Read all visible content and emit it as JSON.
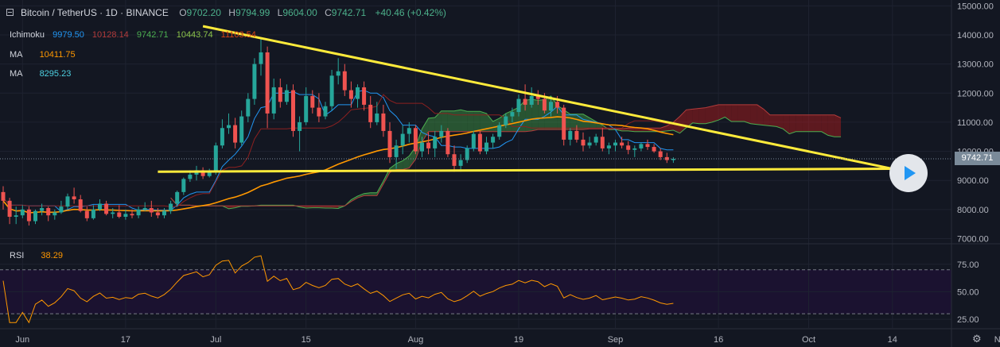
{
  "header": {
    "symbol": "Bitcoin / TetherUS · 1D · BINANCE",
    "o_label": "O",
    "o": "9702.20",
    "h_label": "H",
    "h": "9794.99",
    "l_label": "L",
    "l": "9604.00",
    "c_label": "C",
    "c": "9742.71",
    "change": "+40.46 (+0.42%)"
  },
  "indicators": [
    {
      "name": "Ichimoku",
      "values": [
        "9979.50",
        "10128.14",
        "9742.71",
        "10443.74",
        "11103.54"
      ],
      "colors": [
        "#2196f3",
        "#b23b3b",
        "#4caf50",
        "#8bc34a",
        "#d84315"
      ]
    },
    {
      "name": "MA",
      "values": [
        "10411.75"
      ],
      "colors": [
        "#ff9800"
      ]
    },
    {
      "name": "MA",
      "values": [
        "8295.23"
      ],
      "colors": [
        "#4dd0e1"
      ]
    }
  ],
  "rsi": {
    "name": "RSI",
    "value": "38.29",
    "color": "#ff9800",
    "levels": [
      "75.00",
      "50.00",
      "25.00"
    ]
  },
  "price_tag": "9742.71",
  "colors": {
    "up": "#26a69a",
    "down": "#ef5350",
    "trend": "#ffeb3b",
    "bg": "#131722",
    "grid": "#1e2230"
  },
  "chart_data": {
    "type": "candlestick",
    "y_axis": {
      "ticks": [
        15000,
        14000,
        13000,
        12000,
        11000,
        10000,
        9000,
        8000,
        7000
      ],
      "tick_labels": [
        "15000.00",
        "14000.00",
        "13000.00",
        "12000.00",
        "11000.00",
        "10000.00",
        "9000.00",
        "8000.00",
        "7000.00"
      ],
      "ylim": [
        6850,
        15200
      ]
    },
    "x_axis": {
      "labels": [
        "Jun",
        "17",
        "Jul",
        "15",
        "Aug",
        "19",
        "Sep",
        "16",
        "Oct",
        "14",
        "Nov"
      ],
      "day_index": [
        3,
        19,
        33,
        47,
        64,
        80,
        95,
        111,
        125,
        138,
        155
      ]
    },
    "ohlc": [
      [
        8600,
        8800,
        8000,
        8300
      ],
      [
        8300,
        8400,
        7500,
        7750
      ],
      [
        7750,
        8100,
        7500,
        7800
      ],
      [
        7800,
        8150,
        7700,
        8000
      ],
      [
        8000,
        8100,
        7450,
        7600
      ],
      [
        7600,
        8000,
        7500,
        7950
      ],
      [
        7950,
        8200,
        7800,
        8050
      ],
      [
        8050,
        8100,
        7600,
        7800
      ],
      [
        7800,
        8000,
        7650,
        7900
      ],
      [
        7900,
        8300,
        7850,
        8100
      ],
      [
        8100,
        8550,
        8000,
        8450
      ],
      [
        8450,
        8750,
        8200,
        8350
      ],
      [
        8350,
        8500,
        7900,
        7950
      ],
      [
        7950,
        8100,
        7600,
        7700
      ],
      [
        7700,
        8150,
        7650,
        8000
      ],
      [
        8000,
        8350,
        7950,
        8200
      ],
      [
        8200,
        8300,
        7800,
        7850
      ],
      [
        7850,
        8050,
        7700,
        7900
      ],
      [
        7900,
        8150,
        7700,
        7750
      ],
      [
        7750,
        8000,
        7650,
        7850
      ],
      [
        7850,
        8000,
        7700,
        7800
      ],
      [
        7800,
        8100,
        7700,
        8000
      ],
      [
        8000,
        8250,
        7950,
        8050
      ],
      [
        8050,
        8300,
        7750,
        7900
      ],
      [
        7900,
        8050,
        7700,
        7800
      ],
      [
        7800,
        8050,
        7700,
        7950
      ],
      [
        7950,
        8300,
        7850,
        8200
      ],
      [
        8200,
        8650,
        8100,
        8600
      ],
      [
        8600,
        9100,
        8500,
        9050
      ],
      [
        9050,
        9350,
        8950,
        9200
      ],
      [
        9200,
        9500,
        9000,
        9350
      ],
      [
        9350,
        9450,
        9050,
        9150
      ],
      [
        9150,
        9400,
        9100,
        9300
      ],
      [
        9300,
        10300,
        9200,
        10200
      ],
      [
        10200,
        11100,
        10100,
        10800
      ],
      [
        10800,
        11300,
        10600,
        10900
      ],
      [
        10900,
        11150,
        10100,
        10300
      ],
      [
        10300,
        11400,
        10200,
        11200
      ],
      [
        11200,
        12000,
        11000,
        11800
      ],
      [
        11800,
        13200,
        11600,
        13000
      ],
      [
        13000,
        13900,
        12600,
        13400
      ],
      [
        13400,
        13600,
        10800,
        11300
      ],
      [
        11300,
        12500,
        11100,
        12200
      ],
      [
        12200,
        12500,
        11500,
        11700
      ],
      [
        11700,
        12300,
        11600,
        12100
      ],
      [
        12100,
        12300,
        10500,
        10700
      ],
      [
        10700,
        11200,
        10000,
        11000
      ],
      [
        11000,
        12200,
        10900,
        11900
      ],
      [
        11900,
        12100,
        11300,
        11500
      ],
      [
        11500,
        12000,
        11000,
        11200
      ],
      [
        11200,
        11700,
        11100,
        11550
      ],
      [
        11550,
        12800,
        11400,
        12600
      ],
      [
        12600,
        13200,
        12300,
        12750
      ],
      [
        12750,
        13000,
        11900,
        12100
      ],
      [
        12100,
        12400,
        11500,
        11800
      ],
      [
        11800,
        12300,
        11500,
        12200
      ],
      [
        12200,
        12400,
        11400,
        11600
      ],
      [
        11600,
        11900,
        10800,
        11000
      ],
      [
        11000,
        11700,
        10900,
        11300
      ],
      [
        11300,
        11600,
        10500,
        10700
      ],
      [
        10700,
        11000,
        9600,
        9800
      ],
      [
        9800,
        10400,
        9400,
        10200
      ],
      [
        10200,
        10900,
        9900,
        10600
      ],
      [
        10600,
        11000,
        10300,
        10800
      ],
      [
        10800,
        10900,
        9900,
        10000
      ],
      [
        10000,
        10500,
        9800,
        10300
      ],
      [
        10300,
        10650,
        9900,
        10100
      ],
      [
        10100,
        10700,
        9800,
        10500
      ],
      [
        10500,
        10900,
        10300,
        10700
      ],
      [
        10700,
        10800,
        9800,
        9900
      ],
      [
        9900,
        10200,
        9300,
        9500
      ],
      [
        9500,
        9900,
        9300,
        9700
      ],
      [
        9700,
        10200,
        9600,
        10100
      ],
      [
        10100,
        10700,
        10000,
        10600
      ],
      [
        10600,
        10700,
        9900,
        10000
      ],
      [
        10000,
        10500,
        9900,
        10300
      ],
      [
        10300,
        10600,
        10100,
        10500
      ],
      [
        10500,
        11000,
        10400,
        10900
      ],
      [
        10900,
        11300,
        10800,
        11200
      ],
      [
        11200,
        11500,
        11000,
        11350
      ],
      [
        11350,
        11950,
        11200,
        11800
      ],
      [
        11800,
        12300,
        11400,
        11600
      ],
      [
        11600,
        12200,
        11500,
        11900
      ],
      [
        11900,
        12100,
        11600,
        11800
      ],
      [
        11800,
        12000,
        11300,
        11400
      ],
      [
        11400,
        11800,
        11200,
        11700
      ],
      [
        11700,
        11900,
        11300,
        11500
      ],
      [
        11500,
        11600,
        10200,
        10400
      ],
      [
        10400,
        10800,
        10200,
        10700
      ],
      [
        10700,
        10900,
        10300,
        10400
      ],
      [
        10400,
        10650,
        10000,
        10200
      ],
      [
        10200,
        10500,
        10100,
        10300
      ],
      [
        10300,
        10600,
        10200,
        10500
      ],
      [
        10500,
        10800,
        10000,
        10100
      ],
      [
        10100,
        10300,
        9900,
        10200
      ],
      [
        10200,
        10400,
        10000,
        10300
      ],
      [
        10300,
        10500,
        10100,
        10200
      ],
      [
        10200,
        10350,
        9900,
        10050
      ],
      [
        10050,
        10200,
        9800,
        10100
      ],
      [
        10100,
        10300,
        10000,
        10250
      ],
      [
        10250,
        10400,
        10050,
        10150
      ],
      [
        10150,
        10250,
        9950,
        10000
      ],
      [
        10000,
        10100,
        9700,
        9800
      ],
      [
        9800,
        9950,
        9600,
        9700
      ],
      [
        9700,
        9794.99,
        9604,
        9742.71
      ]
    ]
  }
}
